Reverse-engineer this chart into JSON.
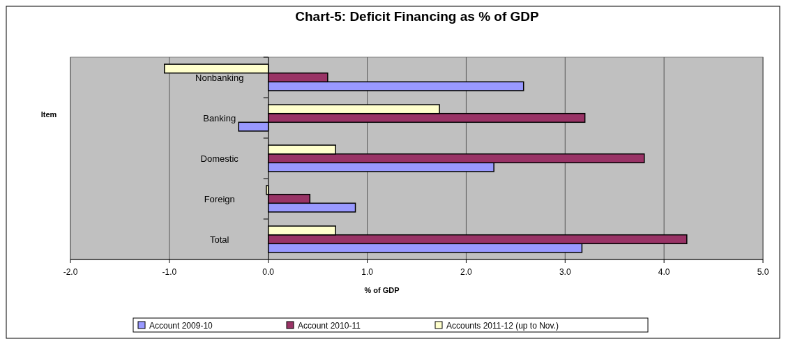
{
  "chart_data": {
    "type": "bar",
    "orientation": "horizontal",
    "title": "Chart-5: Deficit Financing as % of GDP",
    "xlabel": "% of GDP",
    "ylabel": "Item",
    "categories": [
      "Nonbanking",
      "Banking",
      "Domestic",
      "Foreign",
      "Total"
    ],
    "series": [
      {
        "name": "Account 2009-10",
        "color": "#9999ff",
        "values": [
          2.58,
          -0.3,
          2.28,
          0.88,
          3.17
        ]
      },
      {
        "name": "Account 2010-11",
        "color": "#993366",
        "values": [
          0.6,
          3.2,
          3.8,
          0.42,
          4.23
        ]
      },
      {
        "name": "Accounts 2011-12 (up to Nov.)",
        "color": "#ffffcc",
        "values": [
          -1.05,
          1.73,
          0.68,
          -0.02,
          0.68
        ]
      }
    ],
    "xlim": [
      -2,
      5
    ],
    "xticks": [
      {
        "value": -2,
        "label": "-2.0"
      },
      {
        "value": -1,
        "label": "-1.0"
      },
      {
        "value": 0,
        "label": "0.0"
      },
      {
        "value": 1,
        "label": "1.0"
      },
      {
        "value": 2,
        "label": "2.0"
      },
      {
        "value": 3,
        "label": "3.0"
      },
      {
        "value": 4,
        "label": "4.0"
      },
      {
        "value": 5,
        "label": "5.0"
      }
    ],
    "grid": "x",
    "legend": "bottom"
  }
}
